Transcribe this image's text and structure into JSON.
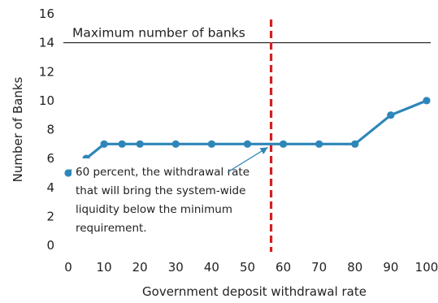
{
  "chart_data": {
    "type": "line",
    "xlabel": "Government deposit withdrawal rate",
    "ylabel": "Number of Banks",
    "xlim": [
      0,
      100
    ],
    "ylim": [
      0,
      16
    ],
    "x_ticks": [
      0,
      10,
      20,
      30,
      40,
      50,
      60,
      70,
      80,
      90,
      100
    ],
    "y_ticks": [
      0,
      2,
      4,
      6,
      8,
      10,
      12,
      14,
      16
    ],
    "grid": false,
    "series": [
      {
        "color": "#2e86b8",
        "x": [
          0,
          5,
          10,
          15,
          20,
          30,
          40,
          50,
          60,
          70,
          80,
          90,
          100
        ],
        "y": [
          5,
          6,
          7,
          7,
          7,
          7,
          7,
          7,
          7,
          7,
          7,
          9,
          10
        ]
      }
    ],
    "reference_line": {
      "y": 14,
      "label": "Maximum number of banks",
      "color": "#000000"
    },
    "threshold_line": {
      "x": 60,
      "color": "#d22020",
      "style": "dashed"
    },
    "annotation": {
      "lines": [
        "60 percent, the withdrawal rate",
        "that will bring the system-wide",
        "liquidity below the minimum",
        "requirement."
      ],
      "arrow_color": "#2e86b8",
      "points_to": {
        "x": 60,
        "y": 7
      }
    }
  }
}
